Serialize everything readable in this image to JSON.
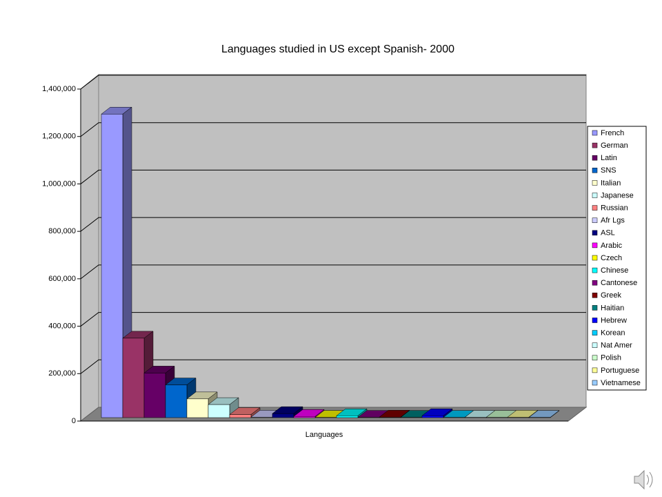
{
  "chart_data": {
    "type": "bar",
    "title": "Languages studied in US except Spanish- 2000",
    "categories": [
      "Languages"
    ],
    "series": [
      {
        "name": "French",
        "color": "#9999ff",
        "values": [
          1280000
        ]
      },
      {
        "name": "German",
        "color": "#993366",
        "values": [
          335000
        ]
      },
      {
        "name": "Latin",
        "color": "#660066",
        "values": [
          188000
        ]
      },
      {
        "name": "SNS",
        "color": "#0066cc",
        "values": [
          138000
        ]
      },
      {
        "name": "Italian",
        "color": "#ffffcc",
        "values": [
          79000
        ]
      },
      {
        "name": "Japanese",
        "color": "#ccffff",
        "values": [
          55000
        ]
      },
      {
        "name": "Russian",
        "color": "#ff8080",
        "values": [
          13000
        ]
      },
      {
        "name": "Afr Lgs",
        "color": "#ccccff",
        "values": [
          2000
        ]
      },
      {
        "name": "ASL",
        "color": "#000080",
        "values": [
          17000
        ]
      },
      {
        "name": "Arabic",
        "color": "#ff00ff",
        "values": [
          5000
        ]
      },
      {
        "name": "Czech",
        "color": "#ffff00",
        "values": [
          1000
        ]
      },
      {
        "name": "Chinese",
        "color": "#00ffff",
        "values": [
          8000
        ]
      },
      {
        "name": "Cantonese",
        "color": "#800080",
        "values": [
          1000
        ]
      },
      {
        "name": "Greek",
        "color": "#800000",
        "values": [
          2000
        ]
      },
      {
        "name": "Haitian",
        "color": "#008080",
        "values": [
          1000
        ]
      },
      {
        "name": "Hebrew",
        "color": "#0000ff",
        "values": [
          8000
        ]
      },
      {
        "name": "Korean",
        "color": "#00ccff",
        "values": [
          1000
        ]
      },
      {
        "name": "Nat Amer",
        "color": "#ccffff",
        "values": [
          1000
        ]
      },
      {
        "name": "Polish",
        "color": "#ccffcc",
        "values": [
          1000
        ]
      },
      {
        "name": "Portuguese",
        "color": "#ffff99",
        "values": [
          2000
        ]
      },
      {
        "name": "Vietnamese",
        "color": "#99ccff",
        "values": [
          1000
        ]
      }
    ],
    "ylim": [
      0,
      1400000
    ],
    "yticks": [
      0,
      {
        "value": 200000,
        "label": "200,000"
      },
      {
        "value": 400000,
        "label": "400,000"
      },
      {
        "value": 600000,
        "label": "600,000"
      },
      {
        "value": 800000,
        "label": "800,000"
      },
      {
        "value": 1000000,
        "label": "1,000,000"
      },
      {
        "value": 1200000,
        "label": "1,200,000"
      },
      {
        "value": 1400000,
        "label": "1,400,000"
      }
    ],
    "grid": true,
    "legend": "right"
  }
}
